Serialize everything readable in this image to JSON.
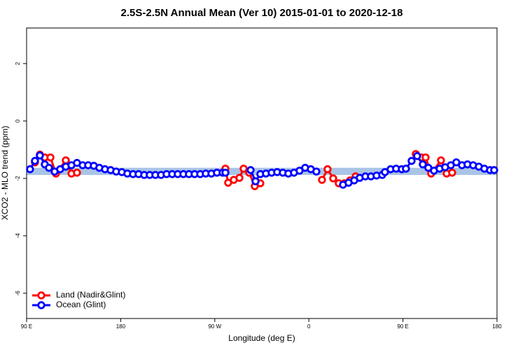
{
  "chart_data": {
    "type": "line",
    "title": "2.5S-2.5N Annual Mean (Ver 10)   2015-01-01 to 2020-12-18",
    "xlabel": "Longitude (deg E)",
    "ylabel": "XCO2 - MLO trend (ppm)",
    "xlim": [
      90,
      540
    ],
    "xticks": [
      {
        "value": 90,
        "label": "90 E"
      },
      {
        "value": 180,
        "label": "180"
      },
      {
        "value": 270,
        "label": "90 W"
      },
      {
        "value": 360,
        "label": "0"
      },
      {
        "value": 450,
        "label": "90 E"
      },
      {
        "value": 540,
        "label": "180"
      }
    ],
    "ylim": [
      -6.88,
      3.24
    ],
    "yticks": [
      2,
      0,
      -2,
      -4,
      -6
    ],
    "band": {
      "low": -1.88,
      "high": -1.63,
      "color": "#a9c4e6"
    },
    "legend": "bottom-left",
    "series": [
      {
        "name": "Land (Nadir&Glint)",
        "color": "#ff0000",
        "x": [
          98.0,
          102.7,
          107.4,
          112.8,
          118.1,
          127.5,
          132.9,
          138.2,
          null,
          280.2,
          282.8,
          288.2,
          293.6,
          297.6,
          302.9,
          308.3,
          313.6,
          null,
          372.6,
          377.9,
          383.3,
          388.6,
          394.0,
          399.4,
          404.7,
          null,
          462.3,
          467.6,
          471.7,
          477.0,
          486.4,
          491.8,
          497.1
        ],
        "values": [
          -1.44,
          -1.17,
          -1.27,
          -1.27,
          -1.83,
          -1.37,
          -1.83,
          -1.8,
          null,
          -1.66,
          -2.15,
          -2.05,
          -1.98,
          -1.66,
          -1.8,
          -2.27,
          -2.17,
          null,
          -2.05,
          -1.68,
          -2.0,
          -2.17,
          -2.17,
          -2.07,
          -1.93,
          null,
          -1.15,
          -1.27,
          -1.27,
          -1.83,
          -1.37,
          -1.83,
          -1.8
        ]
      },
      {
        "name": "Ocean (Glint)",
        "color": "#0000ff",
        "x": [
          93.3,
          98.0,
          102.7,
          107.4,
          111.4,
          116.8,
          122.1,
          127.5,
          132.9,
          138.2,
          143.6,
          148.9,
          154.3,
          159.6,
          165.0,
          170.4,
          175.7,
          181.1,
          186.4,
          191.8,
          197.1,
          202.5,
          207.8,
          213.2,
          218.6,
          223.9,
          229.3,
          234.6,
          240.0,
          245.3,
          250.7,
          256.1,
          261.4,
          266.8,
          272.1,
          277.5,
          280.2,
          null,
          304.3,
          309.0,
          313.6,
          319.0,
          324.4,
          329.7,
          335.1,
          340.4,
          345.8,
          351.1,
          356.5,
          361.9,
          367.2,
          null,
          392.7,
          398.0,
          403.4,
          408.7,
          414.1,
          419.4,
          424.8,
          430.2,
          432.8,
          438.2,
          443.5,
          448.9,
          452.9,
          458.3,
          463.6,
          469.0,
          474.3,
          479.7,
          485.1,
          490.4,
          495.8,
          501.1,
          506.5,
          511.8,
          517.2,
          522.6,
          527.9,
          533.3,
          537.3
        ],
        "values": [
          -1.68,
          -1.39,
          -1.2,
          -1.51,
          -1.63,
          -1.76,
          -1.68,
          -1.59,
          -1.54,
          -1.46,
          -1.54,
          -1.54,
          -1.56,
          -1.63,
          -1.68,
          -1.71,
          -1.76,
          -1.78,
          -1.83,
          -1.85,
          -1.85,
          -1.88,
          -1.88,
          -1.88,
          -1.88,
          -1.85,
          -1.85,
          -1.85,
          -1.85,
          -1.85,
          -1.85,
          -1.85,
          -1.83,
          -1.83,
          -1.8,
          -1.8,
          -1.8,
          null,
          -1.71,
          -2.1,
          -1.85,
          -1.83,
          -1.8,
          -1.78,
          -1.8,
          -1.83,
          -1.8,
          -1.73,
          -1.63,
          -1.68,
          -1.76,
          null,
          -2.22,
          -2.15,
          -2.07,
          -1.98,
          -1.93,
          -1.93,
          -1.9,
          -1.88,
          -1.78,
          -1.68,
          -1.66,
          -1.68,
          -1.66,
          -1.39,
          -1.22,
          -1.51,
          -1.63,
          -1.73,
          -1.66,
          -1.61,
          -1.54,
          -1.44,
          -1.54,
          -1.51,
          -1.54,
          -1.59,
          -1.66,
          -1.71,
          -1.71
        ]
      }
    ]
  }
}
